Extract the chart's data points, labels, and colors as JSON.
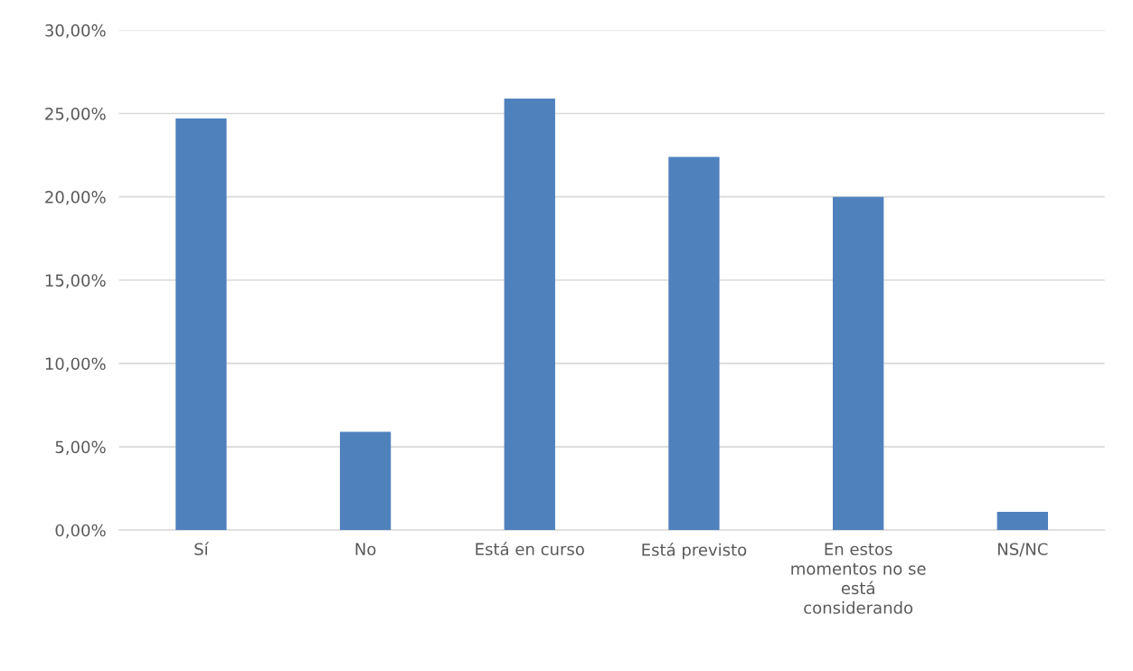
{
  "chart_data": {
    "type": "bar",
    "categories": [
      "Sí",
      "No",
      "Está en curso",
      "Está previsto",
      "En estos\nmomentos no se\nestá\nconsiderando",
      "NS/NC"
    ],
    "values": [
      24.7,
      5.9,
      25.9,
      22.4,
      20.0,
      1.1
    ],
    "color": "#4f81bd",
    "ylim": [
      0,
      30
    ],
    "yticks": [
      {
        "value": 0,
        "label": "0,00%"
      },
      {
        "value": 5,
        "label": "5,00%"
      },
      {
        "value": 10,
        "label": "10,00%"
      },
      {
        "value": 15,
        "label": "15,00%"
      },
      {
        "value": 20,
        "label": "20,00%"
      },
      {
        "value": 25,
        "label": "25,00%"
      },
      {
        "value": 30,
        "label": "30,00%"
      }
    ],
    "grid": "y",
    "legend": false
  }
}
